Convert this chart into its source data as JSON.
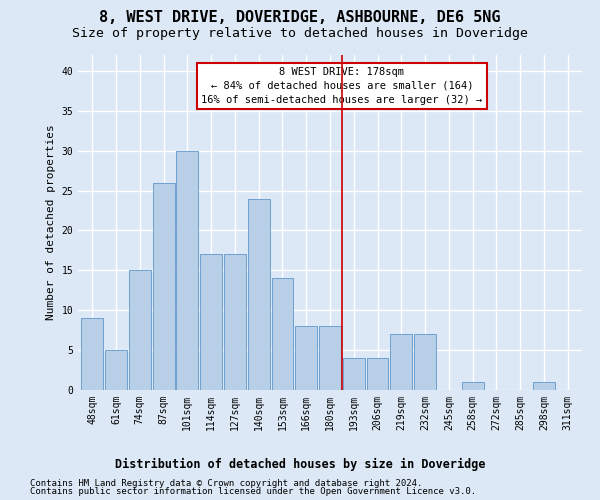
{
  "title1": "8, WEST DRIVE, DOVERIDGE, ASHBOURNE, DE6 5NG",
  "title2": "Size of property relative to detached houses in Doveridge",
  "xlabel": "Distribution of detached houses by size in Doveridge",
  "ylabel": "Number of detached properties",
  "categories": [
    "48sqm",
    "61sqm",
    "74sqm",
    "87sqm",
    "101sqm",
    "114sqm",
    "127sqm",
    "140sqm",
    "153sqm",
    "166sqm",
    "180sqm",
    "193sqm",
    "206sqm",
    "219sqm",
    "232sqm",
    "245sqm",
    "258sqm",
    "272sqm",
    "285sqm",
    "298sqm",
    "311sqm"
  ],
  "values": [
    9,
    5,
    15,
    26,
    30,
    17,
    17,
    24,
    14,
    8,
    8,
    4,
    4,
    7,
    7,
    0,
    1,
    0,
    0,
    1,
    0
  ],
  "bar_color": "#b8cfe8",
  "bar_edge_color": "#6096c8",
  "bar_edge_width": 0.6,
  "vline_x_index": 10.5,
  "vline_color": "#cc0000",
  "annotation_line1": "8 WEST DRIVE: 178sqm",
  "annotation_line2": "← 84% of detached houses are smaller (164)",
  "annotation_line3": "16% of semi-detached houses are larger (32) →",
  "annotation_box_color": "#cc0000",
  "ylim": [
    0,
    42
  ],
  "yticks": [
    0,
    5,
    10,
    15,
    20,
    25,
    30,
    35,
    40
  ],
  "footer1": "Contains HM Land Registry data © Crown copyright and database right 2024.",
  "footer2": "Contains public sector information licensed under the Open Government Licence v3.0.",
  "bg_color": "#dce8f5",
  "plot_bg_color": "#dce8f5",
  "grid_color": "#ffffff",
  "title1_fontsize": 11,
  "title2_fontsize": 9.5,
  "annotation_fontsize": 7.5,
  "tick_fontsize": 7,
  "ylabel_fontsize": 8,
  "xlabel_fontsize": 8.5,
  "footer_fontsize": 6.5
}
